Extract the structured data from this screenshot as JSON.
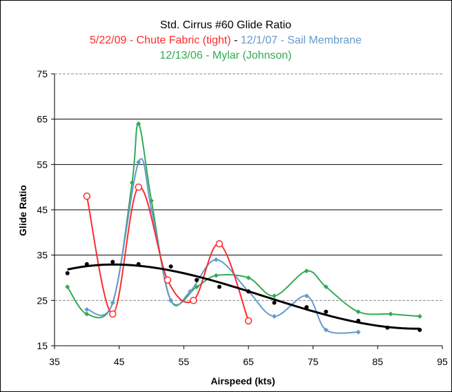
{
  "chart_data": {
    "type": "line",
    "title": "Std. Cirrus #60 Glide Ratio",
    "subtitle_parts": [
      {
        "text": "5/22/09 - Chute Fabric (tight)",
        "color": "#ff2a2a"
      },
      {
        "text": " - ",
        "color": "#000000"
      },
      {
        "text": "12/1/07 - Sail Membrane",
        "color": "#6699cc"
      }
    ],
    "subtitle2": {
      "text": "12/13/06 - Mylar (Johnson)",
      "color": "#33aa55"
    },
    "xlabel": "Airspeed (kts)",
    "ylabel": "Glide Ratio",
    "xlim": [
      35,
      95
    ],
    "ylim": [
      15,
      75
    ],
    "xticks": [
      35,
      45,
      55,
      65,
      75,
      85,
      95
    ],
    "yticks": [
      15,
      25,
      35,
      45,
      55,
      65,
      75
    ],
    "grid": "horizontal",
    "dashed_gridlines": [
      25,
      75
    ],
    "series": [
      {
        "key": "mylar",
        "color": "#33aa55",
        "marker": "filled-diamond",
        "x": [
          37,
          40,
          44,
          47,
          48,
          50,
          53,
          57,
          60,
          65,
          69,
          74,
          77,
          82,
          87,
          91.5
        ],
        "y": [
          28,
          22,
          24.5,
          51,
          64,
          47,
          25,
          28,
          30.5,
          30,
          26,
          31.5,
          28,
          22.5,
          22,
          21.5
        ]
      },
      {
        "key": "sail",
        "color": "#6699cc",
        "marker": "filled-diamond",
        "x": [
          40,
          44,
          48,
          50,
          53,
          56,
          60,
          65,
          69,
          74,
          77,
          82
        ],
        "y": [
          23,
          24.5,
          55.5,
          45,
          25,
          27,
          34,
          27,
          21.5,
          26,
          18.5,
          18
        ]
      },
      {
        "key": "chute",
        "color": "#ff2a2a",
        "marker": "open-circle",
        "x": [
          40,
          44,
          48,
          52.5,
          56.5,
          60.5,
          65
        ],
        "y": [
          48,
          22,
          50,
          29.5,
          25,
          37.5,
          20.5
        ]
      },
      {
        "key": "trend",
        "color": "#000000",
        "marker": "filled-circle",
        "x": [
          37,
          40,
          44,
          48,
          53,
          57,
          60.5,
          65,
          69,
          74,
          77,
          82,
          86.5,
          91.5
        ],
        "y": [
          31,
          33,
          33.5,
          33,
          32.5,
          29.5,
          28,
          27,
          24.5,
          23.5,
          22.5,
          20.5,
          19,
          18.5
        ],
        "trendline": true
      }
    ]
  }
}
